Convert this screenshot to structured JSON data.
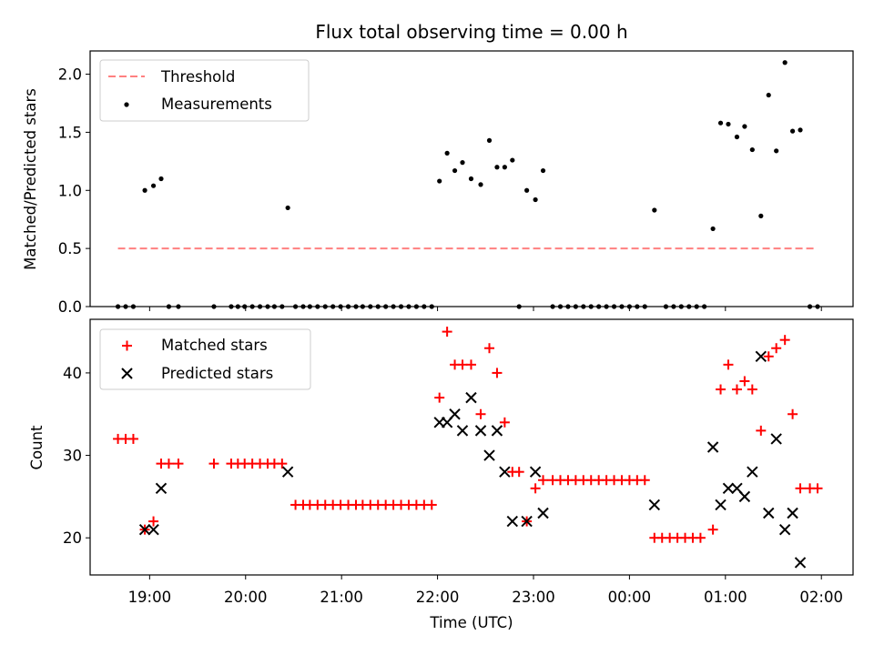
{
  "chart_data": {
    "title": "Flux total observing time = 0.00 h",
    "xlabel": "Time (UTC)",
    "x_unit": "hours (UTC), values past 24 denote next day",
    "xlim": [
      18.38,
      26.33
    ],
    "xticks": [
      {
        "x": 19,
        "label": "19:00"
      },
      {
        "x": 20,
        "label": "20:00"
      },
      {
        "x": 21,
        "label": "21:00"
      },
      {
        "x": 22,
        "label": "22:00"
      },
      {
        "x": 23,
        "label": "23:00"
      },
      {
        "x": 24,
        "label": "00:00"
      },
      {
        "x": 25,
        "label": "01:00"
      },
      {
        "x": 26,
        "label": "02:00"
      }
    ],
    "panels": [
      {
        "type": "scatter",
        "ylabel": "Matched/Predicted stars",
        "ylim": [
          0,
          2.2
        ],
        "yticks": [
          {
            "y": 0.0,
            "label": "0.0"
          },
          {
            "y": 0.5,
            "label": "0.5"
          },
          {
            "y": 1.0,
            "label": "1.0"
          },
          {
            "y": 1.5,
            "label": "1.5"
          },
          {
            "y": 2.0,
            "label": "2.0"
          }
        ],
        "legend": {
          "position": "upper left",
          "entries": [
            "Threshold",
            "Measurements"
          ]
        },
        "threshold": {
          "name": "Threshold",
          "y": 0.5,
          "x_start": 18.67,
          "x_end": 25.93,
          "color": "#ff8080",
          "style": "dashed"
        },
        "measurements": {
          "name": "Measurements",
          "color": "#000000",
          "x": [
            18.67,
            18.75,
            18.83,
            18.95,
            19.04,
            19.12,
            19.2,
            19.3,
            19.67,
            19.85,
            19.92,
            19.99,
            20.07,
            20.15,
            20.23,
            20.3,
            20.38,
            20.44,
            20.52,
            20.6,
            20.67,
            20.75,
            20.83,
            20.91,
            20.99,
            21.07,
            21.15,
            21.22,
            21.3,
            21.38,
            21.46,
            21.54,
            21.62,
            21.7,
            21.78,
            21.86,
            21.94,
            22.02,
            22.1,
            22.18,
            22.26,
            22.35,
            22.45,
            22.54,
            22.62,
            22.7,
            22.78,
            22.85,
            22.93,
            23.02,
            23.1,
            23.2,
            23.28,
            23.36,
            23.44,
            23.52,
            23.6,
            23.68,
            23.76,
            23.84,
            23.92,
            24.0,
            24.08,
            24.16,
            24.26,
            24.38,
            24.46,
            24.54,
            24.62,
            24.7,
            24.78,
            24.87,
            24.95,
            25.03,
            25.12,
            25.2,
            25.28,
            25.37,
            25.45,
            25.53,
            25.62,
            25.7,
            25.78,
            25.88,
            25.96
          ],
          "y": [
            0,
            0,
            0,
            1.0,
            1.04,
            1.1,
            0,
            0,
            0,
            0,
            0,
            0,
            0,
            0,
            0,
            0,
            0,
            0.85,
            0,
            0,
            0,
            0,
            0,
            0,
            0,
            0,
            0,
            0,
            0,
            0,
            0,
            0,
            0,
            0,
            0,
            0,
            0,
            1.08,
            1.32,
            1.17,
            1.24,
            1.1,
            1.05,
            1.43,
            1.2,
            1.2,
            1.26,
            0,
            1.0,
            0.92,
            1.17,
            0,
            0,
            0,
            0,
            0,
            0,
            0,
            0,
            0,
            0,
            0,
            0,
            0,
            0.83,
            0,
            0,
            0,
            0,
            0,
            0,
            0.67,
            1.58,
            1.57,
            1.46,
            1.55,
            1.35,
            0.78,
            1.82,
            1.34,
            2.1,
            1.51,
            1.52,
            0,
            0
          ]
        }
      },
      {
        "type": "scatter",
        "ylabel": "Count",
        "ylim": [
          15.5,
          46.5
        ],
        "yticks": [
          {
            "y": 20,
            "label": "20"
          },
          {
            "y": 30,
            "label": "30"
          },
          {
            "y": 40,
            "label": "40"
          }
        ],
        "legend": {
          "position": "upper left",
          "entries": [
            "Matched stars",
            "Predicted stars"
          ]
        },
        "series": [
          {
            "name": "Matched stars",
            "marker": "plus",
            "color": "#ff0000",
            "x": [
              18.67,
              18.75,
              18.83,
              18.95,
              19.04,
              19.12,
              19.2,
              19.3,
              19.67,
              19.85,
              19.92,
              19.99,
              20.07,
              20.15,
              20.23,
              20.3,
              20.38,
              20.52,
              20.6,
              20.67,
              20.75,
              20.83,
              20.91,
              20.99,
              21.07,
              21.15,
              21.22,
              21.3,
              21.38,
              21.46,
              21.54,
              21.62,
              21.7,
              21.78,
              21.86,
              21.94,
              22.02,
              22.1,
              22.18,
              22.26,
              22.35,
              22.45,
              22.54,
              22.62,
              22.7,
              22.78,
              22.85,
              22.93,
              23.02,
              23.1,
              23.2,
              23.28,
              23.36,
              23.44,
              23.52,
              23.6,
              23.68,
              23.76,
              23.84,
              23.92,
              24.0,
              24.08,
              24.16,
              24.26,
              24.34,
              24.42,
              24.5,
              24.58,
              24.66,
              24.74,
              24.87,
              24.95,
              25.03,
              25.12,
              25.2,
              25.28,
              25.37,
              25.45,
              25.53,
              25.62,
              25.7,
              25.78,
              25.88,
              25.96
            ],
            "y": [
              32,
              32,
              32,
              21,
              22,
              29,
              29,
              29,
              29,
              29,
              29,
              29,
              29,
              29,
              29,
              29,
              29,
              24,
              24,
              24,
              24,
              24,
              24,
              24,
              24,
              24,
              24,
              24,
              24,
              24,
              24,
              24,
              24,
              24,
              24,
              24,
              37,
              45,
              41,
              41,
              41,
              35,
              43,
              40,
              34,
              28,
              28,
              22,
              26,
              27,
              27,
              27,
              27,
              27,
              27,
              27,
              27,
              27,
              27,
              27,
              27,
              27,
              27,
              20,
              20,
              20,
              20,
              20,
              20,
              20,
              21,
              38,
              41,
              38,
              39,
              38,
              33,
              42,
              43,
              44,
              35,
              26,
              26,
              26
            ]
          },
          {
            "name": "Predicted stars",
            "marker": "x",
            "color": "#000000",
            "x": [
              18.95,
              19.04,
              19.12,
              20.44,
              22.02,
              22.1,
              22.18,
              22.26,
              22.35,
              22.45,
              22.54,
              22.62,
              22.7,
              22.78,
              22.93,
              23.02,
              23.1,
              24.26,
              24.87,
              24.95,
              25.03,
              25.12,
              25.2,
              25.28,
              25.37,
              25.45,
              25.53,
              25.62,
              25.7,
              25.78
            ],
            "y": [
              21,
              21,
              26,
              28,
              34,
              34,
              35,
              33,
              37,
              33,
              30,
              33,
              28,
              22,
              22,
              28,
              23,
              24,
              31,
              24,
              26,
              26,
              25,
              28,
              42,
              23,
              32,
              21,
              23,
              17
            ]
          }
        ]
      }
    ]
  }
}
